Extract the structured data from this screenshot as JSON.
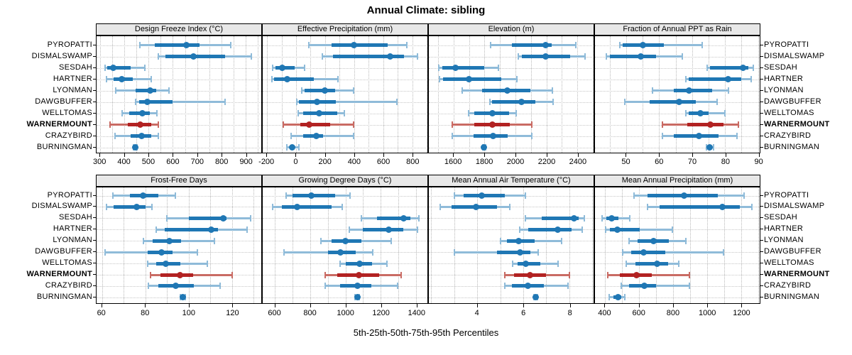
{
  "title": "Annual Climate: sibling",
  "xlabel": "5th-25th-50th-75th-95th Percentiles",
  "sites": [
    "PYROPATTI",
    "DISMALSWAMP",
    "SESDAH",
    "HARTNER",
    "LYONMAN",
    "DAWGBUFFER",
    "WELLTOMAS",
    "WARNERMOUNT",
    "CRAZYBIRD",
    "BURNINGMAN"
  ],
  "highlight_site": "WARNERMOUNT",
  "colors": {
    "blue": "#1f77b4",
    "blue_light": "#8fbbd9",
    "red": "#b22222",
    "red_light": "#c96b64",
    "header_bg": "#e8e8e8",
    "grid": "#b8b8b8",
    "border": "#000000"
  },
  "chart_data": {
    "type": "interval-dotplot",
    "percentile_levels": [
      5,
      25,
      50,
      75,
      95
    ],
    "layout": "2 rows x 4 columns, shared site categories, WARNERMOUNT highlighted red",
    "panels": [
      {
        "title": "Design Freeze Index (°C)",
        "row": 0,
        "col": 0,
        "xlim": [
          285,
          965
        ],
        "ticks": [
          300,
          400,
          500,
          600,
          700,
          800,
          900
        ],
        "tick_labels": [
          "300",
          "400",
          "500",
          "600",
          "700",
          "800",
          "900"
        ],
        "grid_step": 50,
        "values": {
          "PYROPATTI": [
            465,
            525,
            655,
            710,
            840
          ],
          "DISMALSWAMP": [
            540,
            570,
            685,
            815,
            925
          ],
          "SESDAH": [
            320,
            330,
            355,
            425,
            485
          ],
          "HARTNER": [
            325,
            355,
            390,
            435,
            510
          ],
          "LYONMAN": [
            365,
            445,
            505,
            530,
            585
          ],
          "DAWGBUFFER": [
            445,
            460,
            495,
            600,
            815
          ],
          "WELLTOMAS": [
            390,
            420,
            475,
            505,
            535
          ],
          "WARNERMOUNT": [
            340,
            415,
            465,
            510,
            540
          ],
          "CRAZYBIRD": [
            360,
            425,
            470,
            510,
            540
          ],
          "BURNINGMAN": [
            437,
            442,
            445,
            449,
            453
          ]
        }
      },
      {
        "title": "Effective Precipitation (mm)",
        "row": 0,
        "col": 1,
        "xlim": [
          -230,
          905
        ],
        "ticks": [
          -200,
          0,
          200,
          400,
          600,
          800
        ],
        "tick_labels": [
          "-200",
          "0",
          "200",
          "400",
          "600",
          "800"
        ],
        "grid_step": 100,
        "values": {
          "PYROPATTI": [
            90,
            245,
            400,
            630,
            765
          ],
          "DISMALSWAMP": [
            180,
            255,
            650,
            745,
            835
          ],
          "SESDAH": [
            -160,
            -140,
            -95,
            -10,
            60
          ],
          "HARTNER": [
            -165,
            -150,
            -60,
            120,
            290
          ],
          "LYONMAN": [
            40,
            60,
            200,
            270,
            395
          ],
          "DAWGBUFFER": [
            5,
            20,
            145,
            275,
            695
          ],
          "WELLTOMAS": [
            15,
            50,
            160,
            285,
            335
          ],
          "WARNERMOUNT": [
            -90,
            30,
            90,
            235,
            395
          ],
          "CRAZYBIRD": [
            -35,
            50,
            140,
            185,
            395
          ],
          "BURNINGMAN": [
            -65,
            -45,
            -28,
            -10,
            20
          ]
        }
      },
      {
        "title": "Elevation (m)",
        "row": 0,
        "col": 2,
        "xlim": [
          1440,
          2505
        ],
        "ticks": [
          1600,
          1800,
          2000,
          2200,
          2400
        ],
        "tick_labels": [
          "1600",
          "1800",
          "2000",
          "2200",
          "2400"
        ],
        "grid_step": 100,
        "values": {
          "PYROPATTI": [
            1840,
            1975,
            2195,
            2235,
            2390
          ],
          "DISMALSWAMP": [
            2020,
            2040,
            2195,
            2355,
            2450
          ],
          "SESDAH": [
            1505,
            1525,
            1610,
            1800,
            1890
          ],
          "HARTNER": [
            1510,
            1530,
            1700,
            1910,
            2010
          ],
          "LYONMAN": [
            1655,
            1785,
            1945,
            2095,
            2240
          ],
          "DAWGBUFFER": [
            1835,
            1850,
            2040,
            2130,
            2245
          ],
          "WELLTOMAS": [
            1695,
            1735,
            1850,
            1960,
            2005
          ],
          "WARNERMOUNT": [
            1590,
            1735,
            1850,
            1965,
            2105
          ],
          "CRAZYBIRD": [
            1590,
            1730,
            1855,
            1950,
            2105
          ],
          "BURNINGMAN": [
            1789,
            1794,
            1798,
            1802,
            1807
          ]
        }
      },
      {
        "title": "Fraction of Annual PPT as Rain",
        "row": 0,
        "col": 3,
        "xlim": [
          40.5,
          90.5
        ],
        "ticks": [
          50,
          60,
          70,
          80,
          90
        ],
        "tick_labels": [
          "50",
          "60",
          "70",
          "80",
          "90"
        ],
        "grid_step": 5,
        "values": {
          "PYROPATTI": [
            48,
            49,
            55,
            61.5,
            73
          ],
          "DISMALSWAMP": [
            44,
            45,
            54.5,
            59,
            67
          ],
          "SESDAH": [
            74.5,
            75.5,
            85.5,
            87,
            88.5
          ],
          "HARTNER": [
            68,
            69,
            81,
            85,
            88
          ],
          "LYONMAN": [
            58,
            64.5,
            69,
            76,
            81
          ],
          "DAWGBUFFER": [
            49.5,
            57,
            66,
            71,
            77.5
          ],
          "WELLTOMAS": [
            68,
            69,
            72.5,
            75,
            80
          ],
          "WARNERMOUNT": [
            61,
            68.5,
            75.5,
            79.5,
            84
          ],
          "CRAZYBIRD": [
            61,
            64.5,
            72,
            78,
            83.5
          ],
          "BURNINGMAN": [
            74.3,
            75,
            75.4,
            75.8,
            76.5
          ]
        }
      },
      {
        "title": "Frost-Free Days",
        "row": 1,
        "col": 0,
        "xlim": [
          57.5,
          133.5
        ],
        "ticks": [
          60,
          80,
          100,
          120
        ],
        "tick_labels": [
          "60",
          "80",
          "100",
          "120"
        ],
        "grid_step": 10,
        "values": {
          "PYROPATTI": [
            65,
            73,
            79,
            86,
            94
          ],
          "DISMALSWAMP": [
            62,
            65.5,
            76,
            80,
            83
          ],
          "SESDAH": [
            90,
            100,
            116,
            117.5,
            128.5
          ],
          "HARTNER": [
            85,
            89,
            110.5,
            113.5,
            127
          ],
          "LYONMAN": [
            79,
            83.5,
            91,
            96.5,
            112
          ],
          "DAWGBUFFER": [
            61.5,
            81,
            87.5,
            92.5,
            104
          ],
          "WELLTOMAS": [
            81,
            85,
            89.5,
            96,
            108.5
          ],
          "WARNERMOUNT": [
            82.5,
            87,
            96,
            102,
            120
          ],
          "CRAZYBIRD": [
            81.5,
            86,
            94,
            102.5,
            114.5
          ],
          "BURNINGMAN": [
            96.3,
            97,
            97.4,
            97.8,
            98.4
          ]
        }
      },
      {
        "title": "Growing Degree Days (°C)",
        "row": 1,
        "col": 1,
        "xlim": [
          530,
          1465
        ],
        "ticks": [
          600,
          800,
          1000,
          1200,
          1400
        ],
        "tick_labels": [
          "600",
          "800",
          "1000",
          "1200",
          "1400"
        ],
        "grid_step": 100,
        "values": {
          "PYROPATTI": [
            665,
            700,
            805,
            940,
            1025
          ],
          "DISMALSWAMP": [
            585,
            640,
            725,
            920,
            980
          ],
          "SESDAH": [
            1090,
            1180,
            1330,
            1370,
            1415
          ],
          "HARTNER": [
            1020,
            1100,
            1245,
            1330,
            1410
          ],
          "LYONMAN": [
            860,
            920,
            1000,
            1090,
            1260
          ],
          "DAWGBUFFER": [
            650,
            900,
            970,
            1060,
            1155
          ],
          "WELLTOMAS": [
            970,
            1000,
            1080,
            1150,
            1235
          ],
          "WARNERMOUNT": [
            885,
            955,
            1075,
            1190,
            1315
          ],
          "CRAZYBIRD": [
            885,
            970,
            1070,
            1145,
            1295
          ],
          "BURNINGMAN": [
            1055,
            1062,
            1067,
            1071,
            1078
          ]
        }
      },
      {
        "title": "Mean Annual Air Temperature (°C)",
        "row": 1,
        "col": 2,
        "xlim": [
          1.9,
          9.05
        ],
        "ticks": [
          4,
          6,
          8
        ],
        "tick_labels": [
          "4",
          "6",
          "8"
        ],
        "grid_step": 1,
        "values": {
          "PYROPATTI": [
            3.0,
            3.4,
            4.2,
            5.2,
            6.1
          ],
          "DISMALSWAMP": [
            2.4,
            2.9,
            3.95,
            4.85,
            5.4
          ],
          "SESDAH": [
            6.1,
            6.8,
            8.2,
            8.4,
            8.65
          ],
          "HARTNER": [
            5.85,
            6.2,
            7.5,
            8.1,
            8.55
          ],
          "LYONMAN": [
            5.0,
            5.3,
            5.8,
            6.5,
            7.65
          ],
          "DAWGBUFFER": [
            3.0,
            4.85,
            5.85,
            6.3,
            6.65
          ],
          "WELLTOMAS": [
            5.55,
            5.75,
            6.1,
            6.75,
            7.5
          ],
          "WARNERMOUNT": [
            5.2,
            5.6,
            6.3,
            7.0,
            8.0
          ],
          "CRAZYBIRD": [
            5.2,
            5.5,
            6.2,
            6.9,
            7.95
          ],
          "BURNINGMAN": [
            6.45,
            6.5,
            6.54,
            6.58,
            6.62
          ]
        }
      },
      {
        "title": "Mean Annual Precipitation (mm)",
        "row": 1,
        "col": 3,
        "xlim": [
          340,
          1310
        ],
        "ticks": [
          400,
          600,
          800,
          1000,
          1200
        ],
        "tick_labels": [
          "400",
          "600",
          "800",
          "1000",
          "1200"
        ],
        "grid_step": 100,
        "values": {
          "PYROPATTI": [
            570,
            650,
            865,
            1065,
            1220
          ],
          "DISMALSWAMP": [
            650,
            720,
            1090,
            1195,
            1265
          ],
          "SESDAH": [
            382,
            405,
            440,
            480,
            545
          ],
          "HARTNER": [
            403,
            428,
            470,
            605,
            795
          ],
          "LYONMAN": [
            540,
            590,
            685,
            775,
            875
          ],
          "DAWGBUFFER": [
            505,
            555,
            625,
            755,
            1095
          ],
          "WELLTOMAS": [
            525,
            580,
            705,
            770,
            835
          ],
          "WARNERMOUNT": [
            415,
            485,
            585,
            675,
            895
          ],
          "CRAZYBIRD": [
            495,
            540,
            630,
            700,
            895
          ],
          "BURNINGMAN": [
            425,
            450,
            475,
            495,
            515
          ]
        }
      }
    ]
  }
}
